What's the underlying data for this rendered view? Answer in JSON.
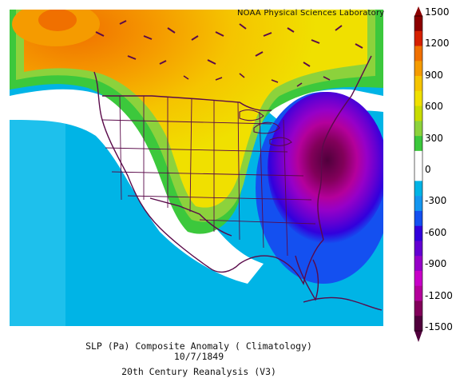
{
  "credit": "NOAA Physical Sciences Laboratory",
  "colorbar": {
    "labels": [
      "1500",
      "1200",
      "900",
      "600",
      "300",
      "0",
      "-300",
      "-600",
      "-900",
      "-1200",
      "-1500"
    ],
    "colors": [
      "#8c0000",
      "#d62000",
      "#f07000",
      "#f59b00",
      "#f5c400",
      "#f0e000",
      "#c8dc00",
      "#8cd23c",
      "#3cc83c",
      "#ffffff",
      "#ffffff",
      "#00b4e6",
      "#1496f0",
      "#1450f0",
      "#3200dc",
      "#6400d2",
      "#9600c8",
      "#c800c8",
      "#b4009b",
      "#82005a",
      "#50003c"
    ]
  },
  "caption": {
    "line1": "SLP (Pa) Composite Anomaly ( Climatology)",
    "line2": "10/7/1849",
    "line3": "20th Century Reanalysis (V3)"
  },
  "map": {
    "variable": "SLP (Pa) Composite Anomaly",
    "region": "North America",
    "colors": {
      "ocean_negative": "#00b4e6",
      "positive_low": "#3cc83c",
      "positive_mid": "#f0e000",
      "positive_high": "#f59b00",
      "negative_strong": "#50003c",
      "boundaries": "#5a0a4a"
    }
  }
}
